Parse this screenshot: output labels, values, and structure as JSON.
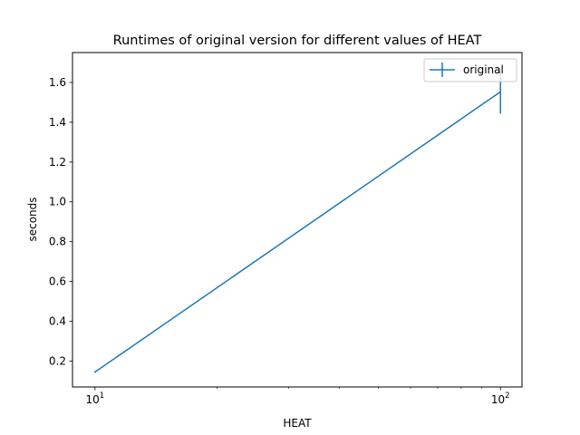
{
  "chart_data": {
    "type": "line",
    "title": "Runtimes of original version for different values of HEAT",
    "xlabel": "HEAT",
    "ylabel": "seconds",
    "xscale": "log",
    "xlim": [
      8.8,
      113
    ],
    "ylim": [
      0.07,
      1.75
    ],
    "x_major_ticks": [
      10,
      100
    ],
    "x_major_tick_labels": [
      "10",
      "1",
      "10",
      "2"
    ],
    "x_minor_ticks": [
      20,
      30,
      40,
      50,
      60,
      70,
      80,
      90
    ],
    "y_ticks": [
      0.2,
      0.4,
      0.6,
      0.8,
      1.0,
      1.2,
      1.4,
      1.6
    ],
    "y_tick_labels": [
      "0.2",
      "0.4",
      "0.6",
      "0.8",
      "1.0",
      "1.2",
      "1.4",
      "1.6"
    ],
    "grid": false,
    "legend": {
      "position": "top-right",
      "entries": [
        "original"
      ]
    },
    "series": [
      {
        "name": "original",
        "color": "#1f77b4",
        "x": [
          10,
          100
        ],
        "y": [
          0.145,
          1.553
        ],
        "yerr": [
          0.004,
          0.11
        ]
      }
    ]
  }
}
